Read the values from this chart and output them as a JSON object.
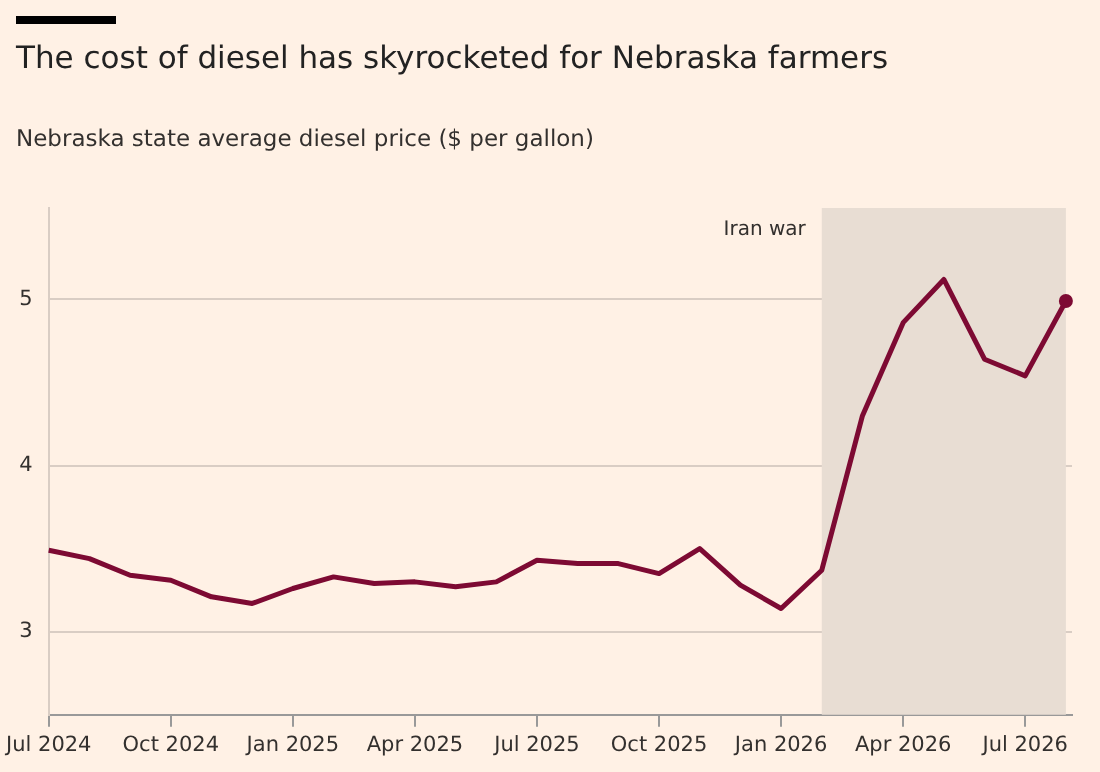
{
  "chart_data": {
    "type": "line",
    "title": "The cost of diesel has skyrocketed for Nebraska farmers",
    "subtitle": "Nebraska state average diesel price ($ per gallon)",
    "x": [
      "2024-07",
      "2024-08",
      "2024-09",
      "2024-10",
      "2024-11",
      "2024-12",
      "2025-01",
      "2025-02",
      "2025-03",
      "2025-04",
      "2025-05",
      "2025-06",
      "2025-07",
      "2025-08",
      "2025-09",
      "2025-10",
      "2025-11",
      "2025-12",
      "2026-01",
      "2026-02",
      "2026-03",
      "2026-04",
      "2026-05",
      "2026-06",
      "2026-07",
      "2026-08"
    ],
    "series": [
      {
        "color": "#7d0a33",
        "values": [
          3.49,
          3.44,
          3.34,
          3.31,
          3.21,
          3.17,
          3.26,
          3.33,
          3.29,
          3.3,
          3.27,
          3.3,
          3.43,
          3.41,
          3.41,
          3.35,
          3.5,
          3.28,
          3.14,
          3.37,
          4.3,
          4.86,
          5.12,
          4.64,
          4.54,
          4.99
        ]
      }
    ],
    "xlim": [
      "2024-07",
      "2026-08"
    ],
    "xticks": [
      {
        "value": "2024-07",
        "label": "Jul 2024"
      },
      {
        "value": "2024-10",
        "label": "Oct 2024"
      },
      {
        "value": "2025-01",
        "label": "Jan 2025"
      },
      {
        "value": "2025-04",
        "label": "Apr 2025"
      },
      {
        "value": "2025-07",
        "label": "Jul 2025"
      },
      {
        "value": "2025-10",
        "label": "Oct 2025"
      },
      {
        "value": "2026-01",
        "label": "Jan 2026"
      },
      {
        "value": "2026-04",
        "label": "Apr 2026"
      },
      {
        "value": "2026-07",
        "label": "Jul 2026"
      }
    ],
    "ylim": [
      2.5,
      5.55
    ],
    "yticks": [
      3,
      4,
      5
    ],
    "grid": "y",
    "bands": [
      {
        "axis": "x",
        "from": "2026-02",
        "to": "2026-08",
        "label": "Iran war",
        "color": "#e8ddd3"
      }
    ]
  }
}
